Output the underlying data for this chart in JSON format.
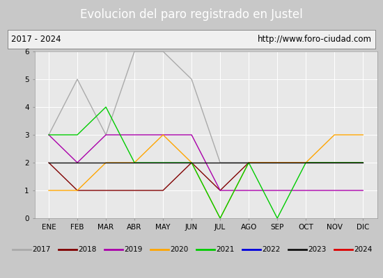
{
  "title": "Evolucion del paro registrado en Justel",
  "subtitle_left": "2017 - 2024",
  "subtitle_right": "http://www.foro-ciudad.com",
  "ylim": [
    0.0,
    6.0
  ],
  "yticks": [
    0.0,
    1.0,
    2.0,
    3.0,
    4.0,
    5.0,
    6.0
  ],
  "months": [
    "ENE",
    "FEB",
    "MAR",
    "ABR",
    "MAY",
    "JUN",
    "JUL",
    "AGO",
    "SEP",
    "OCT",
    "NOV",
    "DIC"
  ],
  "series": {
    "2017": {
      "color": "#aaaaaa",
      "data": [
        3,
        5,
        3,
        6,
        6,
        5,
        2,
        2,
        2,
        2,
        2,
        2
      ]
    },
    "2018": {
      "color": "#800000",
      "data": [
        2,
        1,
        1,
        1,
        1,
        2,
        1,
        2,
        2,
        2,
        2,
        2
      ]
    },
    "2019": {
      "color": "#aa00aa",
      "data": [
        3,
        2,
        3,
        3,
        3,
        3,
        1,
        1,
        1,
        1,
        1,
        1
      ]
    },
    "2020": {
      "color": "#ffa500",
      "data": [
        1,
        1,
        2,
        2,
        3,
        2,
        0,
        2,
        2,
        2,
        3,
        3
      ]
    },
    "2021": {
      "color": "#00cc00",
      "data": [
        3,
        3,
        4,
        2,
        2,
        2,
        0,
        2,
        0,
        2,
        2,
        2
      ]
    },
    "2022": {
      "color": "#0000dd",
      "data": [
        2,
        null,
        null,
        null,
        null,
        null,
        null,
        null,
        null,
        null,
        null,
        null
      ]
    },
    "2023": {
      "color": "#111111",
      "data": [
        2,
        2,
        2,
        2,
        2,
        2,
        2,
        2,
        2,
        2,
        2,
        2
      ]
    },
    "2024": {
      "color": "#dd0000",
      "data": [
        2,
        null,
        null,
        null,
        null,
        null,
        null,
        null,
        null,
        null,
        null,
        null
      ]
    }
  },
  "title_bg_color": "#4f81bd",
  "title_text_color": "#ffffff",
  "title_fontsize": 12,
  "subtitle_fontsize": 8.5,
  "subtitle_bg_color": "#f0f0f0",
  "plot_bg_color": "#e8e8e8",
  "fig_bg_color": "#c8c8c8",
  "legend_bg_color": "#d8d8d8",
  "grid_color": "#ffffff",
  "tick_fontsize": 7.5
}
